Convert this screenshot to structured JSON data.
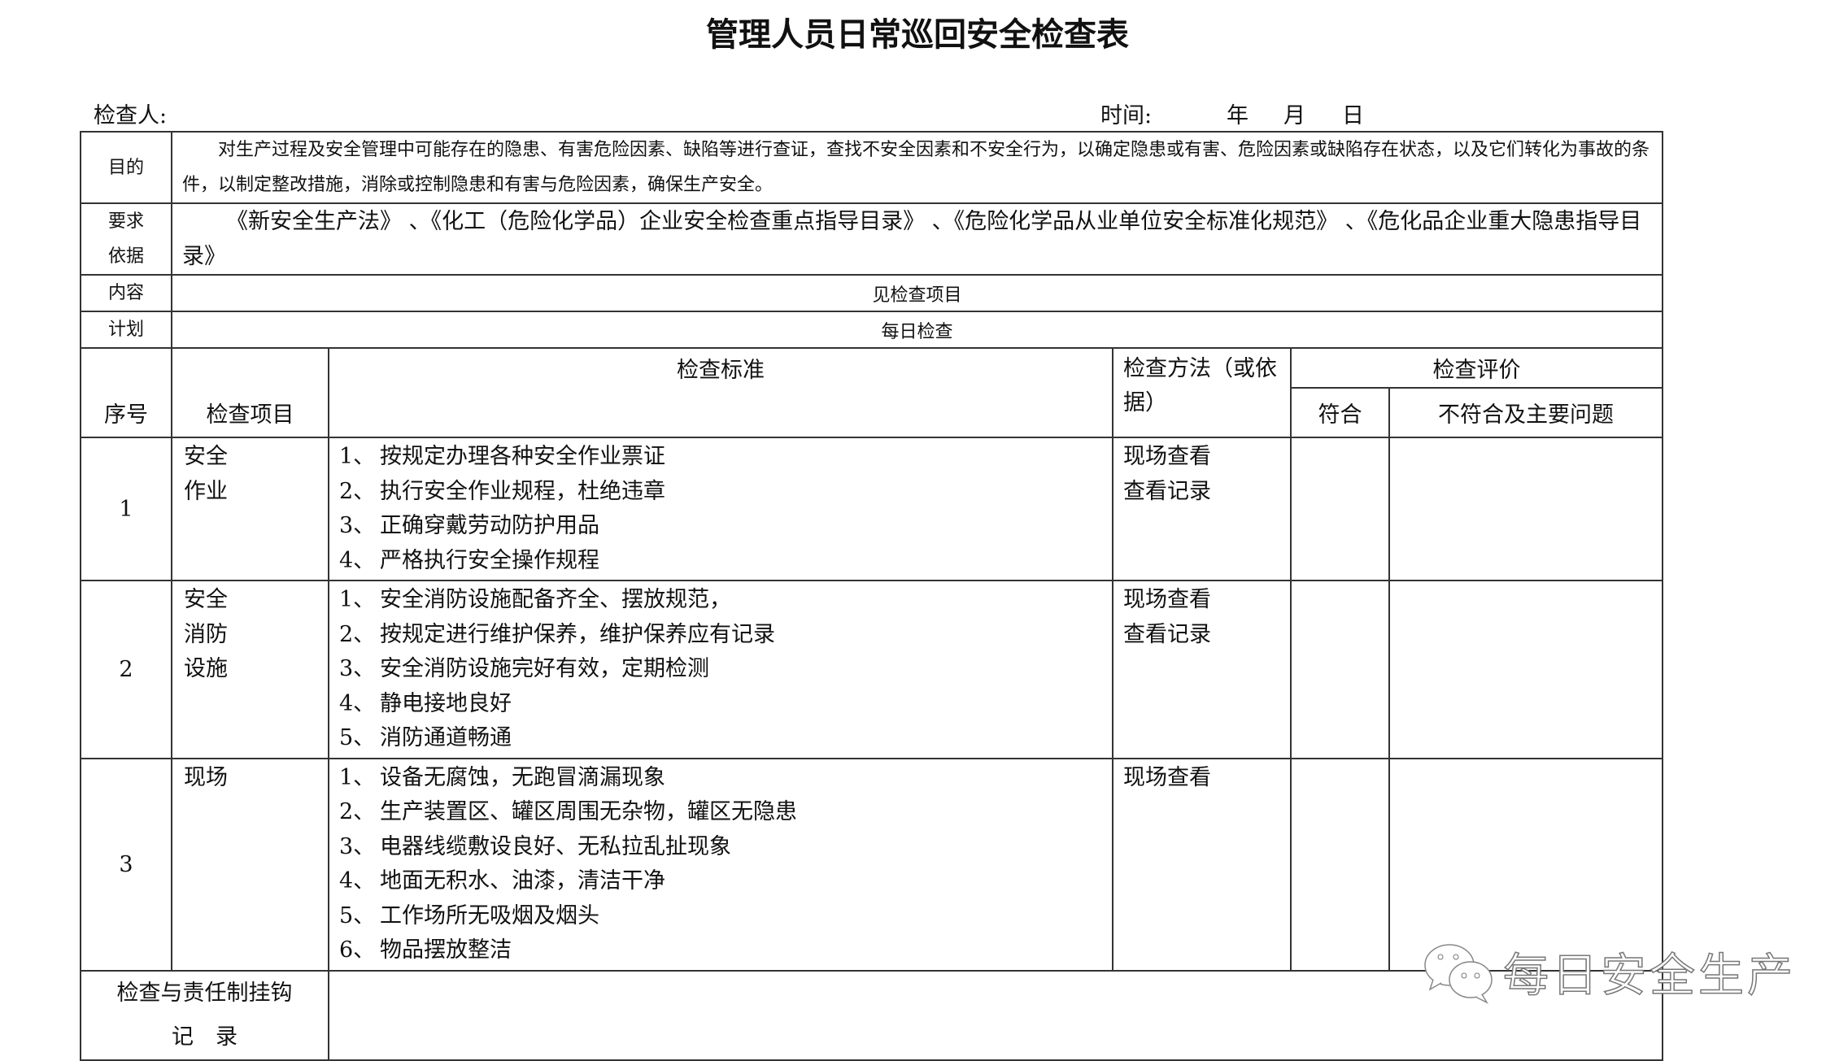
{
  "title": "管理人员日常巡回安全检查表",
  "header": {
    "inspector_label": "检查人:",
    "time_label": "时间:",
    "year": "年",
    "month": "月",
    "day": "日"
  },
  "rows": {
    "purpose": {
      "label": "目的",
      "text": "对生产过程及安全管理中可能存在的隐患、有害危险因素、缺陷等进行查证，查找不安全因素和不安全行为，以确定隐患或有害、危险因素或缺陷存在状态，以及它们转化为事故的条件，以制定整改措施，消除或控制隐患和有害与危险因素，确保生产安全。"
    },
    "basis": {
      "label1": "要求",
      "label2": "依据",
      "text": "《新安全生产法》 、《化工（危险化学品）企业安全检查重点指导目录》 、《危险化学品从业单位安全标准化规范》 、《危化品企业重大隐患指导目录》"
    },
    "content": {
      "label": "内容",
      "text": "见检查项目"
    },
    "plan": {
      "label": "计划",
      "text": "每日检查"
    }
  },
  "columns": {
    "no": "序号",
    "item": "检查项目",
    "standard": "检查标准",
    "method": "检查方法（或依据）",
    "evaluation": "检查评价",
    "conform": "符合",
    "nonconform": "不符合及主要问题"
  },
  "items": [
    {
      "no": "1",
      "item": [
        "安全",
        "作业"
      ],
      "standards": [
        [
          "1、",
          "按规定办理各种安全作业票证"
        ],
        [
          "2、",
          "执行安全作业规程，杜绝违章"
        ],
        [
          "3、",
          "正确穿戴劳动防护用品"
        ],
        [
          "4、",
          "严格执行安全操作规程"
        ]
      ],
      "methods": [
        "现场查看",
        "查看记录"
      ]
    },
    {
      "no": "2",
      "item": [
        "安全",
        "消防",
        "设施"
      ],
      "standards": [
        [
          "1、",
          "安全消防设施配备齐全、摆放规范，"
        ],
        [
          "2、",
          "按规定进行维护保养，维护保养应有记录"
        ],
        [
          "3、",
          "安全消防设施完好有效，定期检测"
        ],
        [
          "4、",
          "静电接地良好"
        ],
        [
          "5、",
          "消防通道畅通"
        ]
      ],
      "methods": [
        "现场查看",
        "查看记录"
      ]
    },
    {
      "no": "3",
      "item": [
        "现场"
      ],
      "standards": [
        [
          "1、",
          "设备无腐蚀，无跑冒滴漏现象"
        ],
        [
          "2、",
          "生产装置区、罐区周围无杂物，罐区无隐患"
        ],
        [
          "3、",
          "电器线缆敷设良好、无私拉乱扯现象"
        ],
        [
          "4、",
          "地面无积水、油漆，清洁干净"
        ],
        [
          "5、",
          "工作场所无吸烟及烟头"
        ],
        [
          "6、",
          "物品摆放整洁"
        ]
      ],
      "methods": [
        "现场查看"
      ]
    }
  ],
  "footer_row": {
    "label1": "检查与责任制挂钩",
    "label2": "记　录"
  },
  "watermark": {
    "text": "每日安全生产",
    "icon": "wechat-icon"
  }
}
